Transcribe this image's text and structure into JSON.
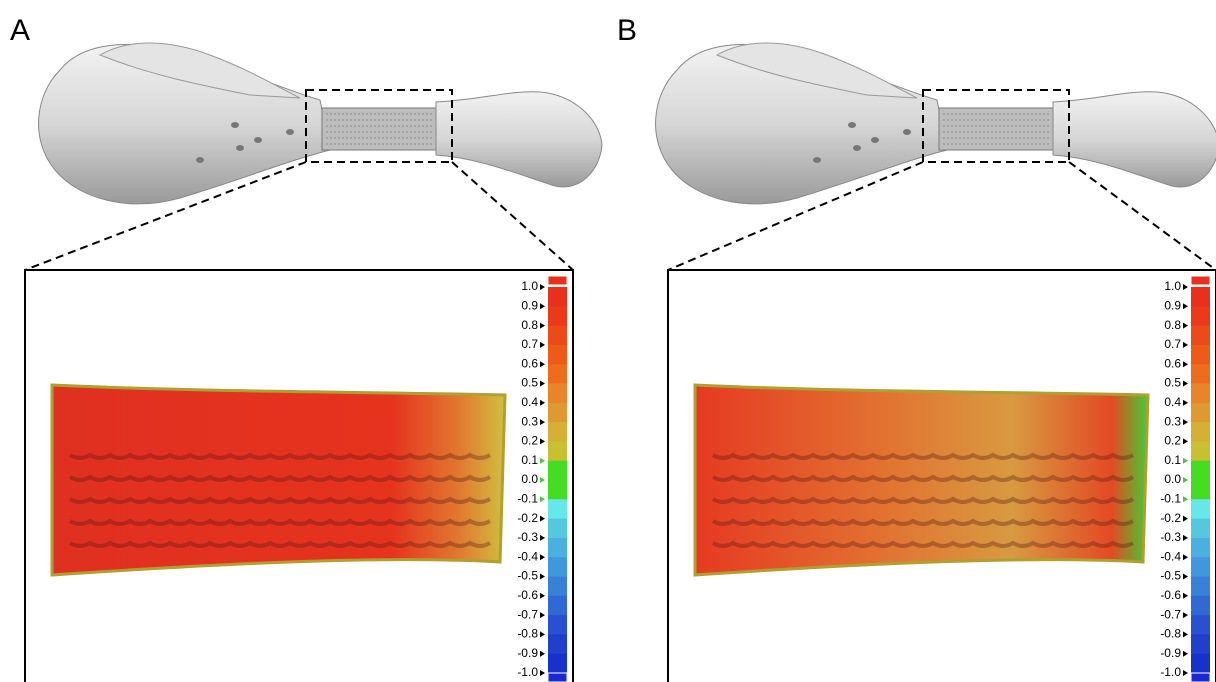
{
  "panels": [
    {
      "label": "A",
      "scale_labels": [
        "1.0",
        "0.9",
        "0.8",
        "0.7",
        "0.6",
        "0.5",
        "0.4",
        "0.3",
        "0.2",
        "0.1",
        "0.0",
        "-0.1",
        "-0.2",
        "-0.3",
        "-0.4",
        "-0.5",
        "-0.6",
        "-0.7",
        "-0.8",
        "-0.9",
        "-1.0"
      ]
    },
    {
      "label": "B",
      "scale_labels": [
        "1.0",
        "0.9",
        "0.8",
        "0.7",
        "0.6",
        "0.5",
        "0.4",
        "0.3",
        "0.2",
        "0.1",
        "0.0",
        "-0.1",
        "-0.2",
        "-0.3",
        "-0.4",
        "-0.5",
        "-0.6",
        "-0.7",
        "-0.8",
        "-0.9",
        "-1.0"
      ]
    }
  ]
}
